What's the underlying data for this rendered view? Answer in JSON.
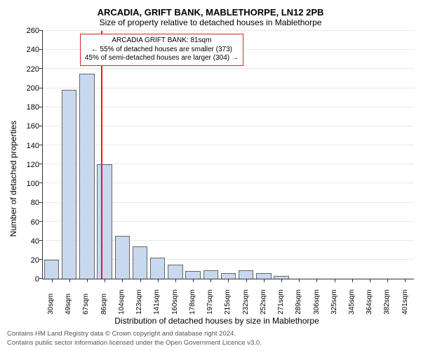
{
  "title_line1": "ARCADIA, GRIFT BANK, MABLETHORPE, LN12 2PB",
  "title_line2": "Size of property relative to detached houses in Mablethorpe",
  "chart": {
    "type": "histogram",
    "ylabel": "Number of detached properties",
    "xlabel": "Distribution of detached houses by size in Mablethorpe",
    "ylim": [
      0,
      260
    ],
    "ytick_step": 20,
    "bar_fill": "#c8d8ef",
    "bar_border": "#666666",
    "grid_color": "#e8e8e8",
    "axis_color": "#333333",
    "background_color": "#ffffff",
    "categories": [
      "30sqm",
      "49sqm",
      "67sqm",
      "86sqm",
      "104sqm",
      "123sqm",
      "141sqm",
      "160sqm",
      "178sqm",
      "197sqm",
      "215sqm",
      "232sqm",
      "252sqm",
      "271sqm",
      "289sqm",
      "306sqm",
      "325sqm",
      "345sqm",
      "364sqm",
      "382sqm",
      "401sqm"
    ],
    "values": [
      20,
      198,
      215,
      120,
      45,
      34,
      22,
      15,
      8,
      9,
      6,
      9,
      6,
      3,
      0,
      0,
      0,
      0,
      0,
      0,
      0
    ],
    "reference_line": {
      "color": "#e02020",
      "category_index": 2.8
    },
    "annotation": {
      "border_color": "#e02020",
      "bg_color": "#ffffff",
      "line1": "ARCADIA GRIFT BANK: 81sqm",
      "line2": "← 55% of detached houses are smaller (373)",
      "line3": "45% of semi-detached houses are larger (304) →"
    }
  },
  "footer": {
    "line1": "Contains HM Land Registry data © Crown copyright and database right 2024.",
    "line2": "Contains public sector information licensed under the Open Government Licence v3.0."
  }
}
